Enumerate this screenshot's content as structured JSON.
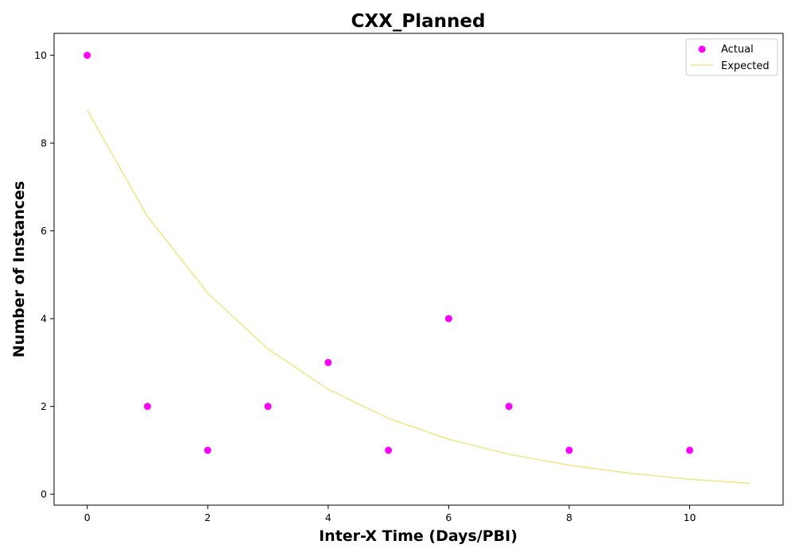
{
  "chart_data": {
    "type": "scatter",
    "title": "CXX_Planned",
    "xlabel": "Inter-X Time (Days/PBI)",
    "ylabel": "Number of Instances",
    "xlim": [
      -0.55,
      11.55
    ],
    "ylim": [
      -0.25,
      10.5
    ],
    "xticks": [
      0,
      2,
      4,
      6,
      8,
      10
    ],
    "yticks": [
      0,
      2,
      4,
      6,
      8,
      10
    ],
    "grid": false,
    "legend_position": "top-right",
    "series": [
      {
        "name": "Actual",
        "kind": "scatter",
        "color": "#ff00ff",
        "x": [
          0,
          1,
          2,
          3,
          4,
          5,
          6,
          7,
          8,
          10
        ],
        "y": [
          10,
          2,
          1,
          2,
          3,
          1,
          4,
          2,
          1,
          1
        ]
      },
      {
        "name": "Expected",
        "kind": "line",
        "color": "#f0e68c",
        "x": [
          0,
          1,
          2,
          3,
          4,
          5,
          6,
          7,
          8,
          9,
          10,
          11
        ],
        "y": [
          8.75,
          6.33,
          4.58,
          3.31,
          2.39,
          1.73,
          1.25,
          0.91,
          0.66,
          0.48,
          0.34,
          0.25
        ]
      }
    ]
  }
}
